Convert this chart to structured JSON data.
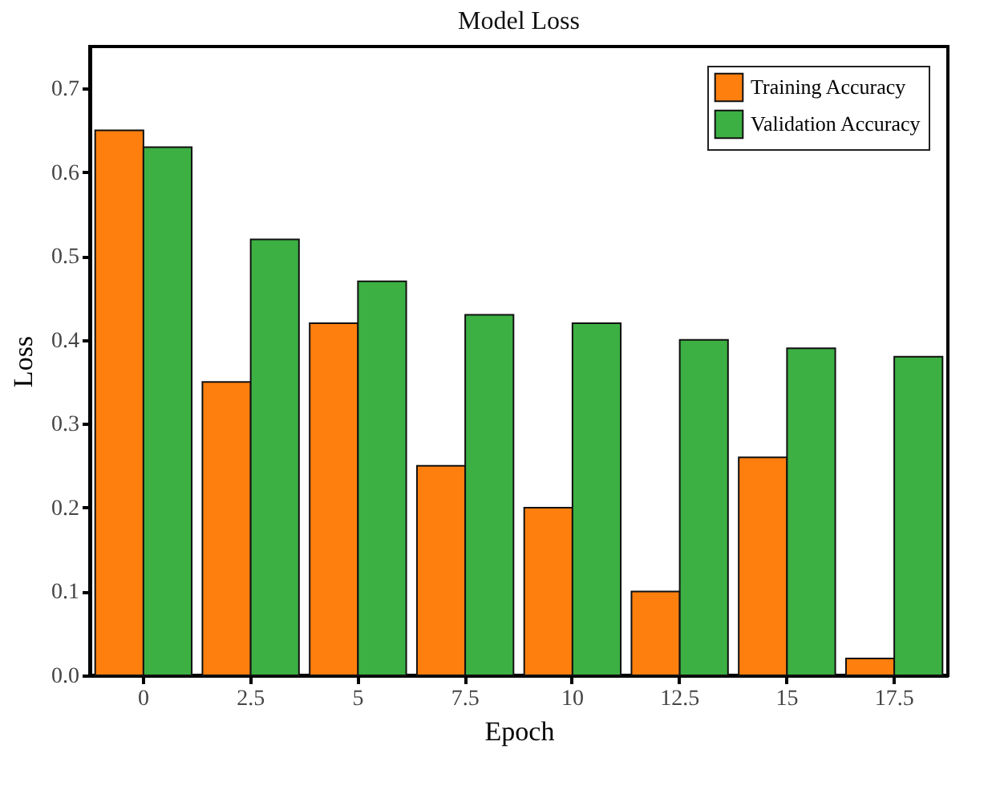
{
  "chart_data": {
    "type": "bar",
    "title": "Model Loss",
    "xlabel": "Epoch",
    "ylabel": "Loss",
    "categories": [
      "0",
      "2.5",
      "5",
      "7.5",
      "10",
      "12.5",
      "15",
      "17.5"
    ],
    "series": [
      {
        "name": "Training Accuracy",
        "color": "#ff7f0e",
        "values": [
          0.65,
          0.35,
          0.42,
          0.25,
          0.2,
          0.1,
          0.26,
          0.02
        ]
      },
      {
        "name": "Validation Accuracy",
        "color": "#3cb043",
        "values": [
          0.63,
          0.52,
          0.47,
          0.43,
          0.42,
          0.4,
          0.39,
          0.38
        ]
      }
    ],
    "ylim": [
      0,
      0.75
    ],
    "yticks": [
      {
        "value": 0,
        "label": "0.0"
      },
      0.1,
      0.2,
      0.3,
      0.4,
      0.5,
      0.6,
      0.7
    ],
    "grid": false,
    "legend": "top right"
  }
}
